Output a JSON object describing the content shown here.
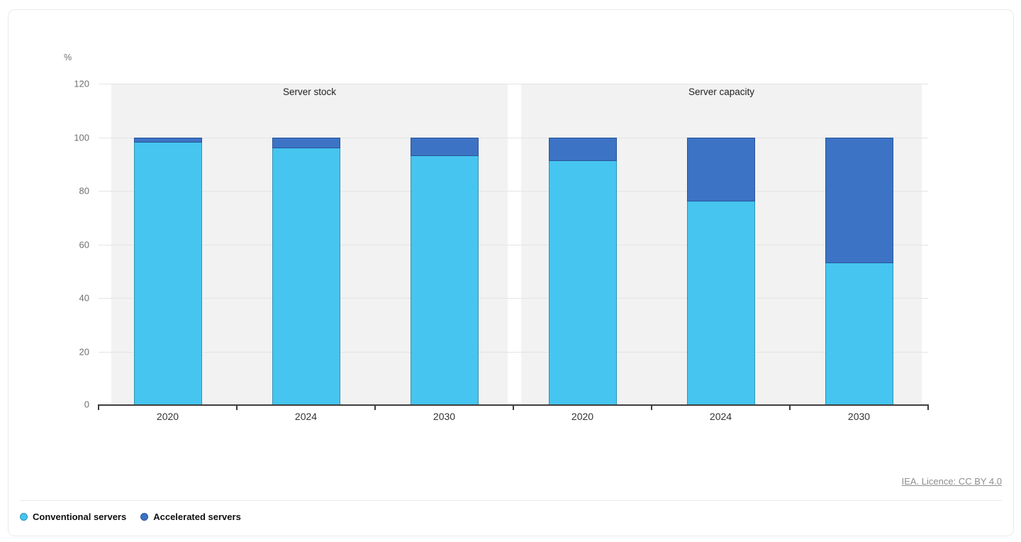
{
  "footer": {
    "licence_text": "IEA. Licence: CC BY 4.0"
  },
  "chart_data": {
    "type": "bar",
    "stacked": true,
    "unit_label": "%",
    "ylim": [
      0,
      120
    ],
    "yticks": [
      0,
      20,
      40,
      60,
      80,
      100,
      120
    ],
    "grid": true,
    "legend_position": "bottom-left",
    "panels": [
      {
        "title": "Server stock",
        "categories": [
          "2020",
          "2024",
          "2030"
        ],
        "series": [
          {
            "name": "Conventional servers",
            "values": [
              98,
              96,
              93
            ]
          },
          {
            "name": "Accelerated servers",
            "values": [
              2,
              4,
              7
            ]
          }
        ]
      },
      {
        "title": "Server capacity",
        "categories": [
          "2020",
          "2024",
          "2030"
        ],
        "series": [
          {
            "name": "Conventional servers",
            "values": [
              91,
              76,
              53
            ]
          },
          {
            "name": "Accelerated servers",
            "values": [
              9,
              24,
              47
            ]
          }
        ]
      }
    ],
    "legend": [
      {
        "label": "Conventional servers",
        "color": "#45c5ef"
      },
      {
        "label": "Accelerated servers",
        "color": "#3c73c4"
      }
    ],
    "colors": {
      "conventional_fill": "#45c5ef",
      "conventional_border": "#2e95b5",
      "accelerated_fill": "#3c73c4",
      "accelerated_border": "#2a549b",
      "band_bg": "#f2f2f2",
      "grid": "#e4e4e4",
      "axis": "#3f3f3f",
      "licence_color": "#8e8e8e"
    }
  }
}
